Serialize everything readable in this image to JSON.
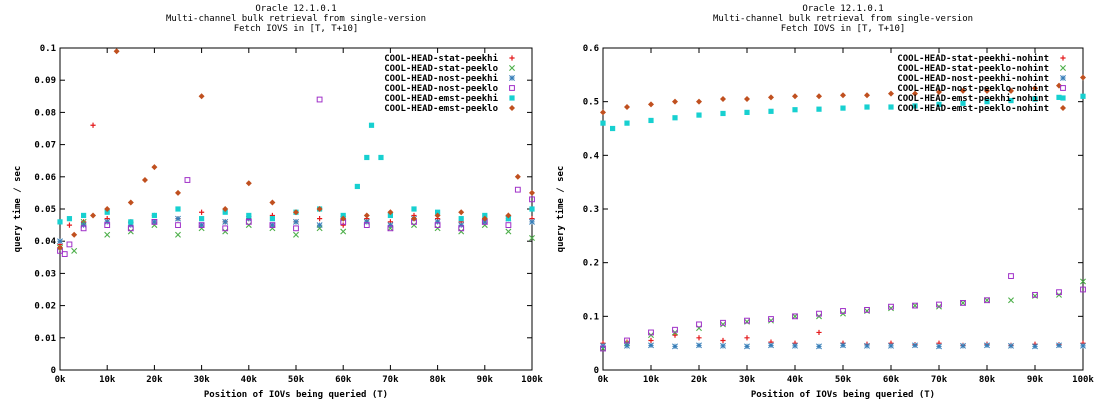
{
  "colors": {
    "COOL-HEAD-stat-peekhi": "#e41a1c",
    "COOL-HEAD-stat-peeklo": "#4daf4a",
    "COOL-HEAD-nost-peekhi": "#377eb8",
    "COOL-HEAD-nost-peeklo": "#a030c8",
    "COOL-HEAD-emst-peekhi": "#17d0d0",
    "COOL-HEAD-emst-peeklo": "#c0501f"
  },
  "chart_data": [
    {
      "type": "scatter",
      "title": [
        "Oracle 12.1.0.1",
        "Multi-channel bulk retrieval from single-version",
        "Fetch IOVS in [T, T+10]"
      ],
      "xlabel": "Position of IOVs being queried (T)",
      "ylabel": "query time / sec",
      "xlim": [
        0,
        100000
      ],
      "ylim": [
        0,
        0.1
      ],
      "xticks": [
        "0k",
        "10k",
        "20k",
        "30k",
        "40k",
        "50k",
        "60k",
        "70k",
        "80k",
        "90k",
        "100k"
      ],
      "yticks": [
        "0",
        "0.01",
        "0.02",
        "0.03",
        "0.04",
        "0.05",
        "0.06",
        "0.07",
        "0.08",
        "0.09",
        "0.1"
      ],
      "grid": false,
      "legend_position": "top-right",
      "series": [
        {
          "name": "COOL-HEAD-stat-peekhi",
          "marker": "plus",
          "x": [
            0,
            2000,
            5000,
            7000,
            10000,
            15000,
            20000,
            25000,
            30000,
            35000,
            40000,
            45000,
            50000,
            55000,
            60000,
            65000,
            70000,
            75000,
            80000,
            85000,
            90000,
            95000,
            100000
          ],
          "y": [
            0.039,
            0.045,
            0.046,
            0.076,
            0.047,
            0.046,
            0.048,
            0.047,
            0.049,
            0.046,
            0.047,
            0.048,
            0.046,
            0.047,
            0.045,
            0.047,
            0.046,
            0.048,
            0.047,
            0.046,
            0.047,
            0.048,
            0.047
          ]
        },
        {
          "name": "COOL-HEAD-stat-peeklo",
          "marker": "x",
          "x": [
            0,
            3000,
            5000,
            10000,
            15000,
            20000,
            25000,
            30000,
            35000,
            40000,
            45000,
            50000,
            55000,
            60000,
            65000,
            70000,
            75000,
            80000,
            85000,
            90000,
            95000,
            100000
          ],
          "y": [
            0.038,
            0.037,
            0.046,
            0.042,
            0.043,
            0.045,
            0.042,
            0.044,
            0.043,
            0.045,
            0.044,
            0.042,
            0.044,
            0.043,
            0.046,
            0.044,
            0.045,
            0.044,
            0.043,
            0.045,
            0.043,
            0.041
          ]
        },
        {
          "name": "COOL-HEAD-nost-peekhi",
          "marker": "star",
          "x": [
            0,
            5000,
            10000,
            15000,
            20000,
            25000,
            30000,
            35000,
            40000,
            45000,
            50000,
            55000,
            60000,
            65000,
            70000,
            75000,
            80000,
            85000,
            90000,
            95000,
            100000
          ],
          "y": [
            0.04,
            0.045,
            0.046,
            0.045,
            0.046,
            0.047,
            0.045,
            0.046,
            0.047,
            0.045,
            0.046,
            0.045,
            0.047,
            0.046,
            0.045,
            0.047,
            0.046,
            0.045,
            0.046,
            0.047,
            0.046
          ]
        },
        {
          "name": "COOL-HEAD-nost-peeklo",
          "marker": "square-open",
          "x": [
            0,
            1000,
            2000,
            5000,
            10000,
            15000,
            20000,
            25000,
            27000,
            30000,
            35000,
            40000,
            45000,
            50000,
            55000,
            60000,
            65000,
            70000,
            75000,
            80000,
            85000,
            90000,
            95000,
            97000,
            100000
          ],
          "y": [
            0.037,
            0.036,
            0.039,
            0.044,
            0.045,
            0.044,
            0.046,
            0.045,
            0.059,
            0.045,
            0.044,
            0.046,
            0.045,
            0.044,
            0.084,
            0.046,
            0.045,
            0.044,
            0.046,
            0.045,
            0.044,
            0.046,
            0.045,
            0.056,
            0.053
          ]
        },
        {
          "name": "COOL-HEAD-emst-peekhi",
          "marker": "square",
          "x": [
            0,
            2000,
            5000,
            10000,
            15000,
            20000,
            25000,
            30000,
            35000,
            40000,
            45000,
            50000,
            55000,
            60000,
            63000,
            65000,
            66000,
            68000,
            70000,
            75000,
            80000,
            85000,
            90000,
            95000,
            100000
          ],
          "y": [
            0.046,
            0.047,
            0.048,
            0.049,
            0.046,
            0.048,
            0.05,
            0.047,
            0.049,
            0.048,
            0.047,
            0.049,
            0.05,
            0.048,
            0.057,
            0.066,
            0.076,
            0.066,
            0.048,
            0.05,
            0.049,
            0.047,
            0.048,
            0.047,
            0.05
          ]
        },
        {
          "name": "COOL-HEAD-emst-peeklo",
          "marker": "diamond",
          "x": [
            0,
            3000,
            7000,
            10000,
            12000,
            15000,
            18000,
            20000,
            25000,
            30000,
            35000,
            40000,
            45000,
            50000,
            55000,
            60000,
            65000,
            70000,
            75000,
            80000,
            85000,
            90000,
            95000,
            97000,
            100000
          ],
          "y": [
            0.038,
            0.042,
            0.048,
            0.05,
            0.099,
            0.052,
            0.059,
            0.063,
            0.055,
            0.085,
            0.05,
            0.058,
            0.052,
            0.049,
            0.05,
            0.047,
            0.048,
            0.049,
            0.047,
            0.048,
            0.049,
            0.047,
            0.048,
            0.06,
            0.055
          ]
        }
      ]
    },
    {
      "type": "scatter",
      "title": [
        "Oracle 12.1.0.1",
        "Multi-channel bulk retrieval from single-version",
        "Fetch IOVS in [T, T+10]"
      ],
      "xlabel": "Position of IOVs being queried (T)",
      "ylabel": "query time / sec",
      "xlim": [
        0,
        100000
      ],
      "ylim": [
        0,
        0.6
      ],
      "xticks": [
        "0k",
        "10k",
        "20k",
        "30k",
        "40k",
        "50k",
        "60k",
        "70k",
        "80k",
        "90k",
        "100k"
      ],
      "yticks": [
        "0",
        "0.1",
        "0.2",
        "0.3",
        "0.4",
        "0.5",
        "0.6"
      ],
      "grid": false,
      "legend_position": "top-right",
      "series": [
        {
          "name": "COOL-HEAD-stat-peekhi-nohint",
          "marker": "plus",
          "x": [
            0,
            5000,
            10000,
            15000,
            20000,
            25000,
            30000,
            35000,
            40000,
            45000,
            50000,
            55000,
            60000,
            65000,
            70000,
            75000,
            80000,
            85000,
            90000,
            95000,
            100000
          ],
          "y": [
            0.05,
            0.052,
            0.055,
            0.065,
            0.06,
            0.055,
            0.06,
            0.052,
            0.05,
            0.07,
            0.05,
            0.048,
            0.05,
            0.047,
            0.05,
            0.046,
            0.048,
            0.046,
            0.048,
            0.047,
            0.05
          ]
        },
        {
          "name": "COOL-HEAD-stat-peeklo-nohint",
          "marker": "x",
          "x": [
            0,
            5000,
            10000,
            15000,
            20000,
            25000,
            30000,
            35000,
            40000,
            45000,
            50000,
            55000,
            60000,
            65000,
            70000,
            75000,
            80000,
            85000,
            90000,
            95000,
            100000
          ],
          "y": [
            0.04,
            0.05,
            0.065,
            0.07,
            0.078,
            0.085,
            0.09,
            0.092,
            0.1,
            0.1,
            0.105,
            0.11,
            0.115,
            0.12,
            0.118,
            0.125,
            0.13,
            0.13,
            0.138,
            0.14,
            0.165
          ]
        },
        {
          "name": "COOL-HEAD-nost-peekhi-nohint",
          "marker": "star",
          "x": [
            0,
            5000,
            10000,
            15000,
            20000,
            25000,
            30000,
            35000,
            40000,
            45000,
            50000,
            55000,
            60000,
            65000,
            70000,
            75000,
            80000,
            85000,
            90000,
            95000,
            100000
          ],
          "y": [
            0.045,
            0.045,
            0.046,
            0.044,
            0.046,
            0.045,
            0.044,
            0.046,
            0.045,
            0.044,
            0.046,
            0.045,
            0.045,
            0.046,
            0.044,
            0.045,
            0.046,
            0.045,
            0.044,
            0.046,
            0.045
          ]
        },
        {
          "name": "COOL-HEAD-nost-peeklo-nohint",
          "marker": "square-open",
          "x": [
            0,
            5000,
            10000,
            15000,
            20000,
            25000,
            30000,
            35000,
            40000,
            45000,
            50000,
            55000,
            60000,
            65000,
            70000,
            75000,
            80000,
            85000,
            90000,
            95000,
            100000
          ],
          "y": [
            0.04,
            0.055,
            0.07,
            0.075,
            0.085,
            0.088,
            0.092,
            0.095,
            0.1,
            0.105,
            0.11,
            0.112,
            0.118,
            0.12,
            0.122,
            0.125,
            0.13,
            0.175,
            0.14,
            0.145,
            0.15
          ]
        },
        {
          "name": "COOL-HEAD-emst-peekhi-nohint",
          "marker": "square",
          "x": [
            0,
            2000,
            5000,
            10000,
            15000,
            20000,
            25000,
            30000,
            35000,
            40000,
            45000,
            50000,
            55000,
            60000,
            65000,
            70000,
            75000,
            80000,
            85000,
            90000,
            95000,
            100000
          ],
          "y": [
            0.46,
            0.45,
            0.46,
            0.465,
            0.47,
            0.475,
            0.478,
            0.48,
            0.482,
            0.485,
            0.486,
            0.488,
            0.49,
            0.49,
            0.492,
            0.495,
            0.497,
            0.5,
            0.502,
            0.505,
            0.508,
            0.51
          ]
        },
        {
          "name": "COOL-HEAD-emst-peeklo-nohint",
          "marker": "diamond",
          "x": [
            0,
            5000,
            10000,
            15000,
            20000,
            25000,
            30000,
            35000,
            40000,
            45000,
            50000,
            55000,
            60000,
            65000,
            70000,
            75000,
            80000,
            85000,
            90000,
            95000,
            100000
          ],
          "y": [
            0.48,
            0.49,
            0.495,
            0.5,
            0.5,
            0.505,
            0.505,
            0.508,
            0.51,
            0.51,
            0.512,
            0.512,
            0.515,
            0.515,
            0.518,
            0.52,
            0.52,
            0.52,
            0.525,
            0.53,
            0.545
          ]
        }
      ]
    }
  ]
}
